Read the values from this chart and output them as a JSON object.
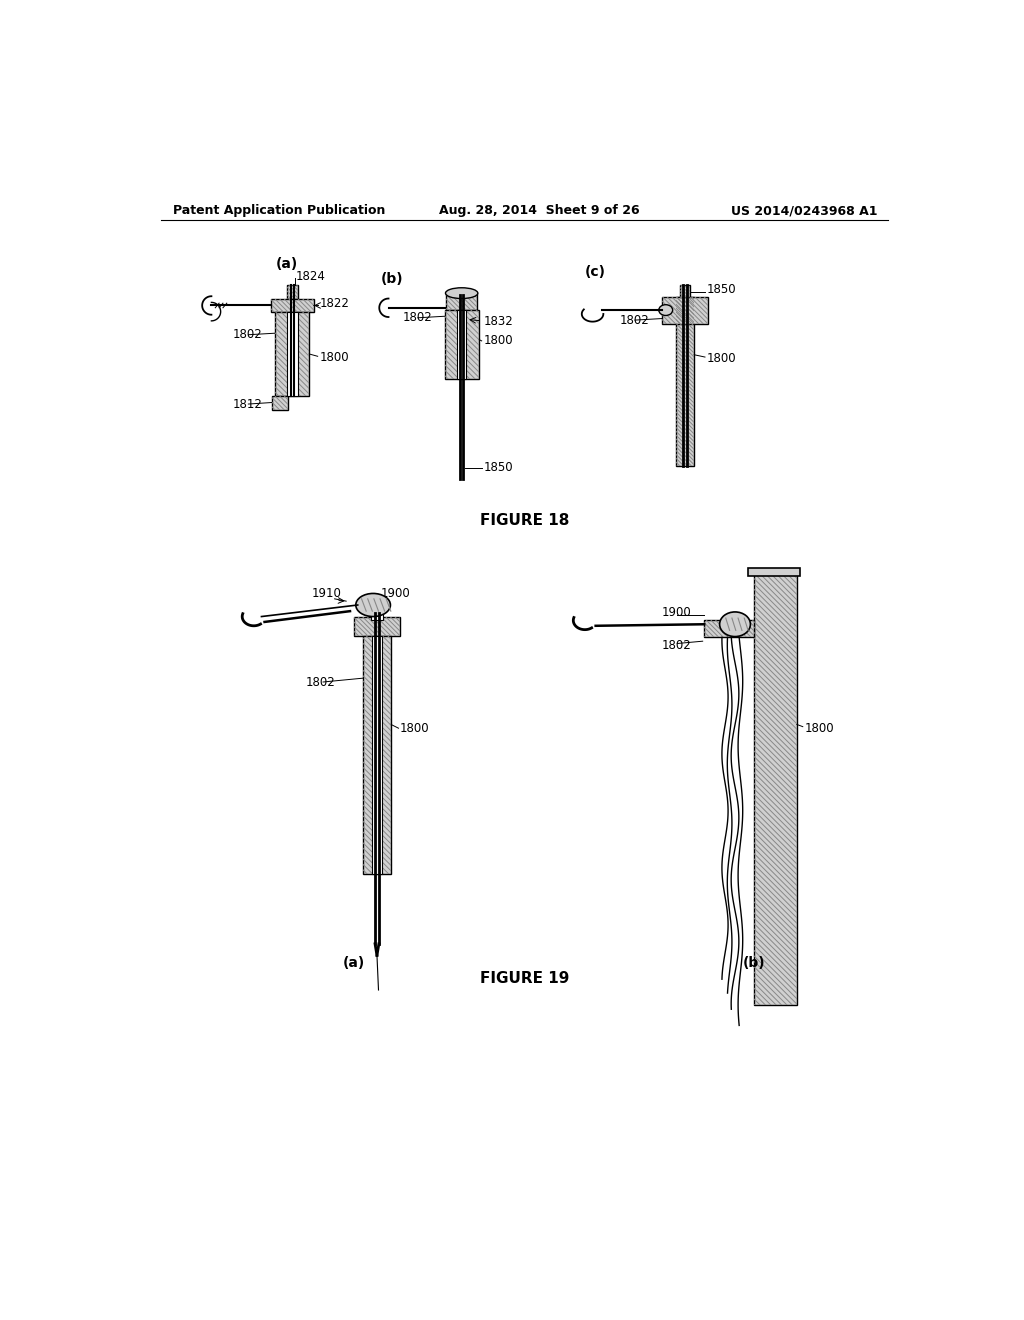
{
  "bg_color": "#ffffff",
  "header_left": "Patent Application Publication",
  "header_mid": "Aug. 28, 2014  Sheet 9 of 26",
  "header_right": "US 2014/0243968 A1",
  "fig18_label": "FIGURE 18",
  "fig19_label": "FIGURE 19",
  "hatch_color": "#888888",
  "hatch_bg": "#d0d0d0",
  "line_color": "#111111"
}
